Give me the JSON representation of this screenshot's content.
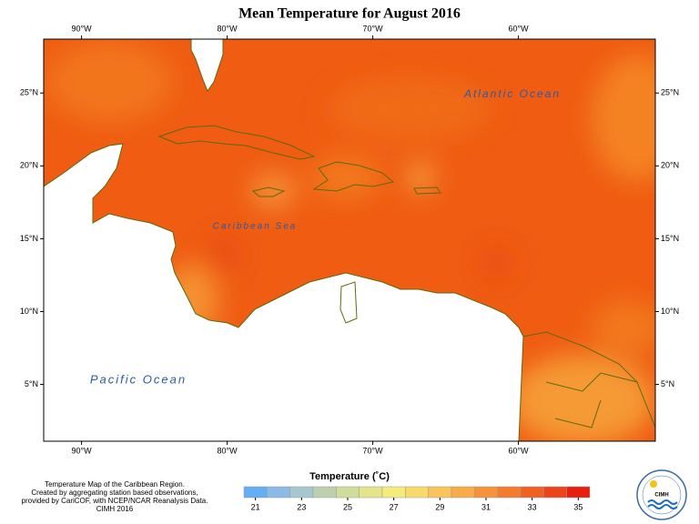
{
  "header": {
    "title": "Mean Temperature for August 2016"
  },
  "map": {
    "xlim": [
      -92.6,
      -50.6
    ],
    "ylim": [
      1.1,
      28.7
    ],
    "xticks": [
      {
        "value": -90,
        "label": "90°W"
      },
      {
        "value": -80,
        "label": "80°W"
      },
      {
        "value": -70,
        "label": "70°W"
      },
      {
        "value": -60,
        "label": "60°W"
      }
    ],
    "yticks": [
      {
        "value": 5,
        "label": "5°N"
      },
      {
        "value": 10,
        "label": "10°N"
      },
      {
        "value": 15,
        "label": "15°N"
      },
      {
        "value": 20,
        "label": "20°N"
      },
      {
        "value": 25,
        "label": "25°N"
      }
    ],
    "labels": [
      "Atlantic Ocean",
      "Caribbean Sea",
      "Pacific Ocean"
    ]
  },
  "colorbar": {
    "title": "Temperature (˚C)",
    "range": [
      20.5,
      35.5
    ],
    "ticks": [
      21,
      23,
      25,
      27,
      29,
      31,
      33,
      35
    ],
    "colors": [
      "#63aef4",
      "#8bbbe5",
      "#a8c6cf",
      "#bcd0b0",
      "#cfdc9a",
      "#e4e48a",
      "#f3ec7a",
      "#f8da6a",
      "#fac45a",
      "#f8ab47",
      "#f6923a",
      "#f47a2c",
      "#f06020",
      "#ec4418",
      "#e81e10"
    ]
  },
  "footnote": [
    "Temperature Map of the Caribbean Region.",
    "Created by aggregating station based observations,",
    "provided by CariCOF, with NCEP/NCAR Reanalysis Data.",
    "CIMH 2016"
  ],
  "logo": {
    "text": "CIMH"
  }
}
